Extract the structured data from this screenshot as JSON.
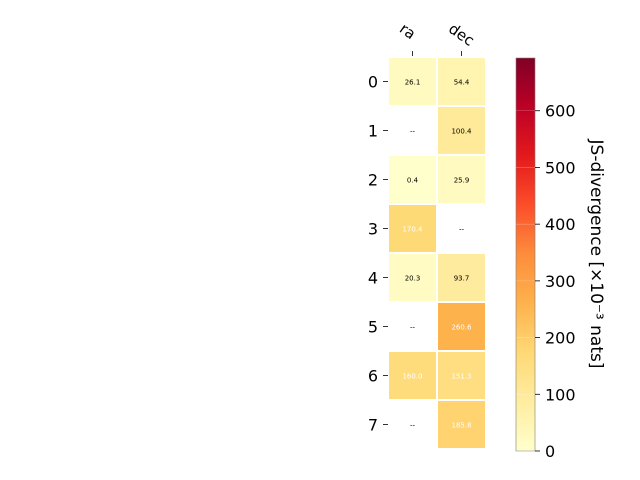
{
  "chart_data": {
    "type": "heatmap",
    "columns": [
      "ra",
      "dec"
    ],
    "rows": [
      "0",
      "1",
      "2",
      "3",
      "4",
      "5",
      "6",
      "7"
    ],
    "values": [
      [
        26.1,
        54.4
      ],
      [
        null,
        100.4
      ],
      [
        0.4,
        25.9
      ],
      [
        170.4,
        null
      ],
      [
        20.3,
        93.7
      ],
      [
        null,
        260.6
      ],
      [
        160.0,
        151.3
      ],
      [
        null,
        185.8
      ]
    ],
    "cell_labels": [
      [
        "26.1",
        "54.4"
      ],
      [
        "--",
        "100.4"
      ],
      [
        "0.4",
        "25.9"
      ],
      [
        "170.4",
        "--"
      ],
      [
        "20.3",
        "93.7"
      ],
      [
        "--",
        "260.6"
      ],
      [
        "160.0",
        "151.3"
      ],
      [
        "--",
        "185.8"
      ]
    ],
    "colorbar": {
      "label": "JS-divergence [×10⁻³ nats]",
      "min": 0,
      "max": 693,
      "ticks": [
        0,
        100,
        200,
        300,
        400,
        500,
        600
      ],
      "tick_labels": [
        "0",
        "100",
        "200",
        "300",
        "400",
        "500",
        "600"
      ],
      "colormap": "YlOrRd"
    },
    "colors": {
      "cell_text_dark": "#000000",
      "cell_text_light": "#ffffff",
      "grid_gap": "#ffffff"
    }
  }
}
